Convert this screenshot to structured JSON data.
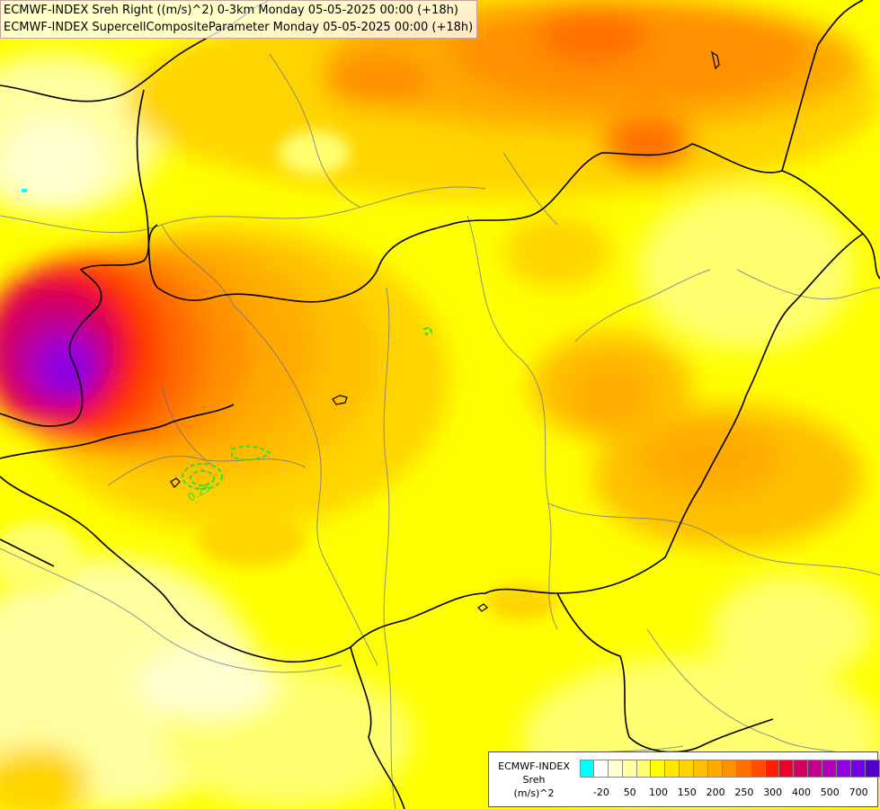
{
  "titles": {
    "line1": "ECMWF-INDEX Sreh Right ((m/s)^2) 0-3km Monday 05-05-2025 00:00 (+18h)",
    "line2": "ECMWF-INDEX SupercellCompositeParameter Monday 05-05-2025 00:00 (+18h)"
  },
  "contour_label": "0.25",
  "legend": {
    "line1": "ECMWF-INDEX",
    "line2": "Sreh",
    "line3": "(m/s)^2",
    "colors": [
      "#00ffff",
      "#ffffff",
      "#ffffd0",
      "#ffffa0",
      "#ffff70",
      "#ffff00",
      "#ffe800",
      "#ffd400",
      "#ffbf00",
      "#ffaa00",
      "#ff9000",
      "#ff7000",
      "#ff4c00",
      "#ff1e00",
      "#ee0030",
      "#d20060",
      "#c0008c",
      "#b000b8",
      "#9000e0",
      "#7000e8",
      "#5000c8",
      "#3000a0",
      "#100070"
    ],
    "ticks": [
      "-20",
      "50",
      "100",
      "150",
      "200",
      "250",
      "300",
      "400",
      "500",
      "700"
    ]
  },
  "colors": {
    "yellow_light": "#ffffb0",
    "yellow": "#ffff00",
    "yellow_orange": "#ffd400",
    "orange": "#ffaa00",
    "dark_orange": "#ff7000",
    "red": "#ff1e00",
    "magenta": "#d20060",
    "purple": "#9000e0",
    "contour_green": "#33dd33"
  }
}
